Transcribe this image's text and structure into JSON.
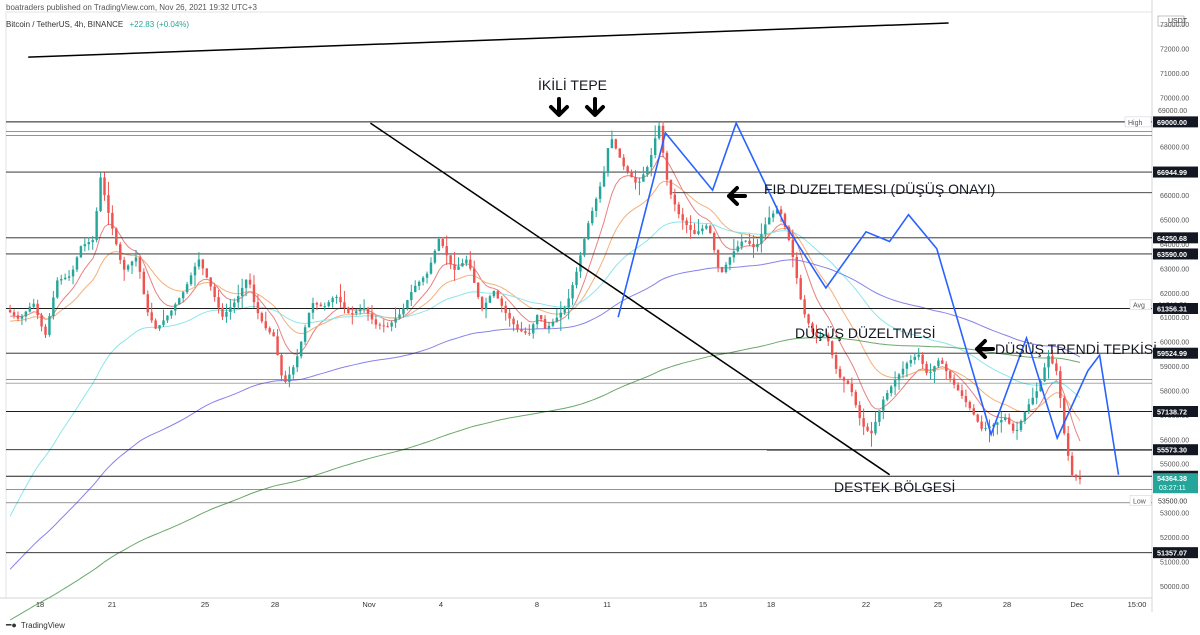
{
  "header": {
    "published": "boatraders published on TradingView.com, Nov 26, 2021 19:32 UTC+3"
  },
  "symbol": {
    "name": "Bitcoin / TetherUS, 4h, BINANCE",
    "change": "+22.83 (+0.04%)"
  },
  "footer": {
    "brand": "TradingView"
  },
  "colors": {
    "up": "#26a69a",
    "down": "#ef5350",
    "pattern_line": "#2962ff",
    "trend_line": "#000000",
    "ema_fast": "#e57373",
    "ema_mid": "#f4a66c",
    "ema_cyan": "#7fe3ea",
    "ema_purple": "#7b74e8",
    "ema_green": "#5a9e5a",
    "current_price_bg": "#26a69a"
  },
  "chart_data": {
    "type": "candlestick",
    "currency": "USDT",
    "ylim": [
      49500,
      73500
    ],
    "y_ticks": [
      "73000.00",
      "72000.00",
      "71000.00",
      "70000.00",
      "69000.00",
      "68000.00",
      "67000.00",
      "66000.00",
      "65000.00",
      "64000.00",
      "63000.00",
      "62000.00",
      "61000.00",
      "60000.00",
      "59000.00",
      "58000.00",
      "57000.00",
      "56000.00",
      "55000.00",
      "54000.00",
      "53000.00",
      "52000.00",
      "51000.00",
      "50000.00"
    ],
    "x_ticks": [
      "18",
      "21",
      "25",
      "28",
      "Nov",
      "4",
      "8",
      "11",
      "15",
      "18",
      "22",
      "25",
      "28",
      "Dec",
      "15:00"
    ],
    "price_levels": [
      {
        "label": "69000.00",
        "value": 69000,
        "tag": "High",
        "tag_value": "69000.00"
      },
      {
        "label": "66944.99",
        "value": 66944.99
      },
      {
        "label": "64250.68",
        "value": 64250.68
      },
      {
        "label": "63590.00",
        "value": 63590.0
      },
      {
        "label": "61512.59",
        "value": 61512.59,
        "tag": "Avg",
        "plain": true
      },
      {
        "label": "61356.31",
        "value": 61356.31
      },
      {
        "label": "59524.99",
        "value": 59524.99
      },
      {
        "label": "57138.72",
        "value": 57138.72
      },
      {
        "label": "55573.30",
        "value": 55573.3
      },
      {
        "label": "54486.18",
        "value": 54486.18
      },
      {
        "label": "53500.00",
        "value": 53500.0,
        "tag": "Low",
        "plain": true
      },
      {
        "label": "51357.07",
        "value": 51357.07
      }
    ],
    "current_price": {
      "label": "54364.38",
      "countdown": "03:27:11",
      "value": 54364.38
    },
    "annotations": [
      {
        "text": "İKİLİ TEPE",
        "arrows": 2,
        "direction": "down"
      },
      {
        "text": "FIB DUZELTEMESI (DÜŞÜŞ ONAYI)",
        "direction": "left"
      },
      {
        "text": "DÜŞÜŞ DÜZELTMESİ"
      },
      {
        "text": "DÜŞÜŞ TRENDİ TEPKİSİ",
        "direction": "left"
      },
      {
        "text": "DESTEK BÖLGESİ"
      }
    ],
    "pattern_points": [
      [
        9,
        61000
      ],
      [
        11,
        68550
      ],
      [
        13,
        66200
      ],
      [
        14,
        68950
      ],
      [
        16,
        64900
      ],
      [
        17.8,
        62200
      ],
      [
        19.5,
        64500
      ],
      [
        20.5,
        64100
      ],
      [
        21.3,
        65200
      ],
      [
        22.5,
        63800
      ],
      [
        24.8,
        56200
      ],
      [
        26.3,
        60150
      ],
      [
        27.6,
        56050
      ],
      [
        28.9,
        58800
      ],
      [
        29.4,
        59450
      ],
      [
        30.2,
        54550
      ]
    ],
    "trend_lines": [
      {
        "from": [
          14,
          68950
        ],
        "to": [
          36,
          54550
        ]
      },
      {
        "from": [
          -0.5,
          71650
        ],
        "to": [
          38.5,
          73050
        ]
      }
    ]
  }
}
